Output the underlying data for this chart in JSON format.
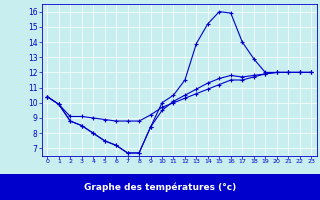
{
  "xlabel": "Graphe des températures (°c)",
  "bg_color": "#c8eef0",
  "line_color": "#0000cc",
  "xlabel_bg": "#0000cc",
  "xlabel_fg": "#ffffff",
  "xlim": [
    -0.5,
    23.5
  ],
  "ylim": [
    6.5,
    16.5
  ],
  "x_ticks": [
    0,
    1,
    2,
    3,
    4,
    5,
    6,
    7,
    8,
    9,
    10,
    11,
    12,
    13,
    14,
    15,
    16,
    17,
    18,
    19,
    20,
    21,
    22,
    23
  ],
  "y_ticks": [
    7,
    8,
    9,
    10,
    11,
    12,
    13,
    14,
    15,
    16
  ],
  "line1_x": [
    0,
    1,
    2,
    3,
    4,
    5,
    6,
    7,
    8,
    9,
    10,
    11,
    12,
    13,
    14,
    15,
    16,
    17,
    18,
    19,
    20,
    21,
    22,
    23
  ],
  "line1_y": [
    10.4,
    9.9,
    8.8,
    8.5,
    8.0,
    7.5,
    7.2,
    6.7,
    6.7,
    8.4,
    10.0,
    10.5,
    11.5,
    13.9,
    15.2,
    16.0,
    15.9,
    14.0,
    12.9,
    12.0,
    12.0,
    12.0,
    12.0,
    12.0
  ],
  "line2_x": [
    0,
    1,
    2,
    3,
    4,
    5,
    6,
    7,
    8,
    9,
    10,
    11,
    12,
    13,
    14,
    15,
    16,
    17,
    18,
    19,
    20,
    21,
    22,
    23
  ],
  "line2_y": [
    10.4,
    9.9,
    9.1,
    9.1,
    9.0,
    8.9,
    8.8,
    8.8,
    8.8,
    9.2,
    9.7,
    10.0,
    10.3,
    10.6,
    10.9,
    11.2,
    11.5,
    11.5,
    11.7,
    11.9,
    12.0,
    12.0,
    12.0,
    12.0
  ],
  "line3_x": [
    0,
    1,
    2,
    3,
    4,
    5,
    6,
    7,
    8,
    9,
    10,
    11,
    12,
    13,
    14,
    15,
    16,
    17,
    18,
    19,
    20,
    21,
    22,
    23
  ],
  "line3_y": [
    10.4,
    9.9,
    8.8,
    8.5,
    8.0,
    7.5,
    7.2,
    6.7,
    6.7,
    8.4,
    9.5,
    10.1,
    10.5,
    10.9,
    11.3,
    11.6,
    11.8,
    11.7,
    11.8,
    11.9,
    12.0,
    12.0,
    12.0,
    12.0
  ]
}
